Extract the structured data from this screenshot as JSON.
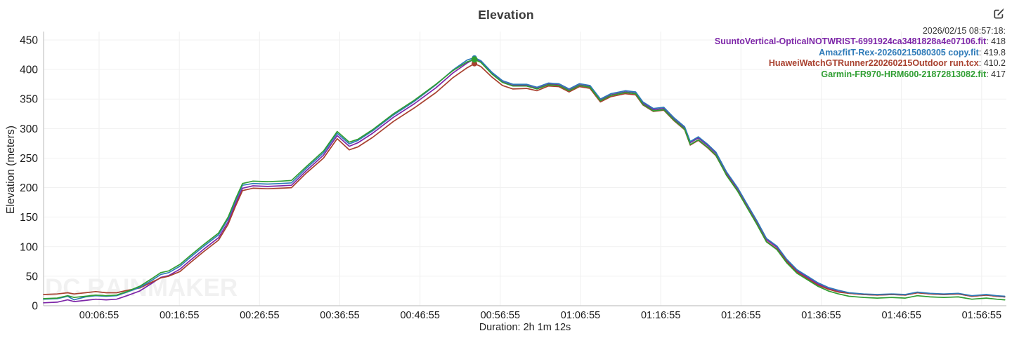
{
  "chart": {
    "title": "Elevation",
    "ylabel": "Elevation (meters)",
    "xlabel": "Duration: 2h 1m 12s",
    "watermark": "DC RAINMAKER"
  },
  "legend": {
    "header": "2026/02/15 08:57:18:",
    "items": [
      {
        "label": "SuuntoVertical-OpticalNOTWRIST-6991924ca3481828a4e07106.fit",
        "value": "418",
        "color": "#7d26a8"
      },
      {
        "label": "AmazfitT-Rex-20260215080305 copy.fit",
        "value": "419.8",
        "color": "#2e7ab8"
      },
      {
        "label": "HuaweiWatchGTRunner220260215Outdoor run.tcx",
        "value": "410.2",
        "color": "#a8402e"
      },
      {
        "label": "Garmin-FR970-HRM600-21872813082.fit",
        "value": "417",
        "color": "#2f9e32"
      }
    ]
  },
  "icons": {
    "edit": "edit-icon"
  },
  "chart_data": {
    "type": "line",
    "title": "Elevation",
    "xlabel": "Duration: 2h 1m 12s",
    "ylabel": "Elevation (meters)",
    "x_unit": "minutes",
    "ylim": [
      0,
      450
    ],
    "yticks": [
      0,
      50,
      100,
      150,
      200,
      250,
      300,
      350,
      400,
      450
    ],
    "xlim": [
      0,
      120
    ],
    "xticks": [
      {
        "t": 6.92,
        "label": "00:06:55"
      },
      {
        "t": 16.92,
        "label": "00:16:55"
      },
      {
        "t": 26.92,
        "label": "00:26:55"
      },
      {
        "t": 36.92,
        "label": "00:36:55"
      },
      {
        "t": 46.92,
        "label": "00:46:55"
      },
      {
        "t": 56.92,
        "label": "00:56:55"
      },
      {
        "t": 66.92,
        "label": "01:06:55"
      },
      {
        "t": 76.92,
        "label": "01:16:55"
      },
      {
        "t": 86.92,
        "label": "01:26:55"
      },
      {
        "t": 96.92,
        "label": "01:36:55"
      },
      {
        "t": 106.92,
        "label": "01:46:55"
      },
      {
        "t": 116.92,
        "label": "01:56:55"
      }
    ],
    "grid": true,
    "legend_position": "top-right",
    "marker_x": 53.7,
    "x": [
      0,
      1.7,
      3,
      3.8,
      5.2,
      6.5,
      7.8,
      9.1,
      10.4,
      12,
      13.5,
      14.6,
      15.6,
      17,
      18.3,
      20,
      21.8,
      23,
      23.9,
      24.8,
      26.1,
      27.9,
      29.6,
      30.9,
      32.7,
      34.9,
      36.6,
      38.1,
      39.2,
      41,
      43.6,
      46.2,
      48.9,
      51,
      52.8,
      53.7,
      54.5,
      55.9,
      57.2,
      58.5,
      60.2,
      61.5,
      62.9,
      64.2,
      65.5,
      66.8,
      68.1,
      69.4,
      70.7,
      72.5,
      73.8,
      74.7,
      76,
      77.3,
      78.6,
      79.9,
      80.6,
      81.6,
      82.8,
      83.8,
      85.1,
      86.5,
      87.6,
      88.9,
      90.1,
      91.4,
      92.6,
      93.9,
      95.2,
      96.5,
      97.8,
      99.1,
      100.4,
      102.2,
      103.9,
      105.7,
      107.4,
      108.9,
      110.5,
      112.2,
      114,
      115.7,
      117.5,
      118.8,
      119.8
    ],
    "series": [
      {
        "name": "SuuntoVertical-OpticalNOTWRIST-6991924ca3481828a4e07106.fit",
        "color": "#7d26a8",
        "marker_value": 418,
        "values": [
          5,
          6,
          10,
          7,
          9,
          11,
          10,
          11,
          17,
          25,
          38,
          48,
          51,
          62,
          77,
          96,
          115,
          142,
          172,
          199,
          203,
          202,
          203,
          204,
          228,
          255,
          288,
          270,
          276,
          292,
          319,
          342,
          369,
          394,
          411,
          418,
          413,
          393,
          379,
          373,
          373,
          368,
          375,
          374,
          365,
          374,
          371,
          348,
          357,
          362,
          360,
          343,
          332,
          334,
          316,
          301,
          276,
          284,
          271,
          258,
          225,
          198,
          172,
          142,
          112,
          99,
          77,
          59,
          48,
          37,
          29,
          24,
          21,
          19,
          18,
          19,
          18,
          22,
          20,
          19,
          20,
          16,
          18,
          16,
          15
        ]
      },
      {
        "name": "AmazfitT-Rex-20260215080305 copy.fit",
        "color": "#2e7ab8",
        "marker_value": 419.8,
        "values": [
          11,
          12,
          16,
          10,
          15,
          17,
          16,
          17,
          23,
          31,
          43,
          53,
          56,
          67,
          82,
          101,
          120,
          147,
          177,
          204,
          207,
          206,
          207,
          208,
          232,
          259,
          292,
          274,
          280,
          296,
          323,
          346,
          374,
          399,
          416,
          420,
          415,
          395,
          381,
          375,
          375,
          370,
          377,
          376,
          367,
          376,
          373,
          350,
          359,
          364,
          362,
          345,
          334,
          336,
          318,
          303,
          278,
          286,
          273,
          260,
          227,
          200,
          174,
          144,
          114,
          101,
          79,
          61,
          50,
          39,
          31,
          26,
          22,
          20,
          19,
          20,
          19,
          23,
          21,
          20,
          21,
          17,
          19,
          17,
          16
        ]
      },
      {
        "name": "HuaweiWatchGTRunner220260215Outdoor run.tcx",
        "color": "#a8402e",
        "marker_value": 410.2,
        "values": [
          19,
          20,
          22,
          20,
          22,
          24,
          22,
          22,
          26,
          30,
          40,
          47,
          50,
          58,
          73,
          92,
          111,
          138,
          168,
          195,
          199,
          198,
          199,
          200,
          224,
          250,
          283,
          264,
          269,
          285,
          312,
          335,
          361,
          386,
          403,
          410,
          405,
          387,
          373,
          367,
          368,
          364,
          372,
          371,
          362,
          371,
          368,
          345,
          354,
          359,
          357,
          340,
          329,
          331,
          313,
          298,
          272,
          280,
          267,
          254,
          222,
          195,
          169,
          139,
          109,
          96,
          75,
          57,
          46,
          35,
          28,
          23,
          21,
          19,
          18,
          19,
          18,
          22,
          20,
          19,
          20,
          16,
          18,
          16,
          15
        ]
      },
      {
        "name": "Garmin-FR970-HRM600-21872813082.fit",
        "color": "#2f9e32",
        "marker_value": 417,
        "values": [
          12,
          13,
          17,
          14,
          16,
          18,
          17,
          18,
          24,
          33,
          46,
          56,
          59,
          70,
          85,
          104,
          123,
          150,
          180,
          207,
          211,
          210,
          211,
          212,
          235,
          262,
          295,
          277,
          282,
          298,
          325,
          348,
          375,
          398,
          413,
          417,
          412,
          392,
          378,
          372,
          372,
          367,
          374,
          373,
          364,
          373,
          370,
          347,
          356,
          361,
          359,
          341,
          330,
          332,
          314,
          299,
          273,
          281,
          268,
          255,
          221,
          194,
          168,
          138,
          108,
          95,
          73,
          55,
          44,
          33,
          25,
          20,
          16,
          14,
          13,
          14,
          13,
          17,
          15,
          14,
          15,
          11,
          13,
          11,
          10
        ]
      }
    ]
  }
}
